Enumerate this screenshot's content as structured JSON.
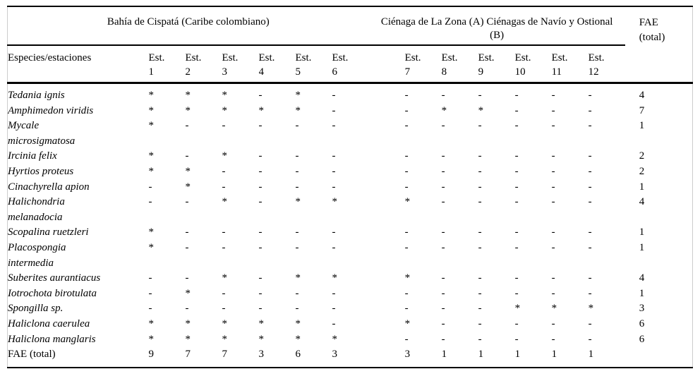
{
  "table": {
    "group_headers": {
      "left": "Bahía de Cispatá (Caribe colombiano)",
      "right": "Ciénaga de La Zona (A) Ciénagas de Navío y Ostional\n(B)"
    },
    "fae_header": "FAE\n(total)",
    "species_header": "Especies/estaciones",
    "station_prefix": "Est.",
    "station_numbers": [
      "1",
      "2",
      "3",
      "4",
      "5",
      "6",
      "7",
      "8",
      "9",
      "10",
      "11",
      "12"
    ],
    "rows": [
      {
        "species": "Tedania ignis",
        "italic": true,
        "values": [
          "*",
          "*",
          "*",
          "-",
          "*",
          "-",
          "-",
          "-",
          "-",
          "-",
          "-",
          "-"
        ],
        "fae": "4"
      },
      {
        "species": "Amphimedon viridis",
        "italic": true,
        "values": [
          "*",
          "*",
          "*",
          "*",
          "*",
          "-",
          "-",
          "*",
          "*",
          "-",
          "-",
          "-"
        ],
        "fae": "7"
      },
      {
        "species": "Mycale\nmicrosigmatosa",
        "italic": true,
        "values": [
          "*",
          "-",
          "-",
          "-",
          "-",
          "-",
          "-",
          "-",
          "-",
          "-",
          "-",
          "-"
        ],
        "fae": "1"
      },
      {
        "species": "Ircinia felix",
        "italic": true,
        "values": [
          "*",
          "-",
          "*",
          "-",
          "-",
          "-",
          "-",
          "-",
          "-",
          "-",
          "-",
          "-"
        ],
        "fae": "2"
      },
      {
        "species": "Hyrtios proteus",
        "italic": true,
        "values": [
          "*",
          "*",
          "-",
          "-",
          "-",
          "-",
          "-",
          "-",
          "-",
          "-",
          "-",
          "-"
        ],
        "fae": "2"
      },
      {
        "species": "Cinachyrella apion",
        "italic": true,
        "values": [
          "-",
          "*",
          "-",
          "-",
          "-",
          "-",
          "-",
          "-",
          "-",
          "-",
          "-",
          "-"
        ],
        "fae": "1"
      },
      {
        "species": "Halichondria\nmelanadocia",
        "italic": true,
        "values": [
          "-",
          "-",
          "*",
          "-",
          "*",
          "*",
          "*",
          "-",
          "-",
          "-",
          "-",
          "-"
        ],
        "fae": "4"
      },
      {
        "species": "Scopalina ruetzleri",
        "italic": true,
        "values": [
          "*",
          "-",
          "-",
          "-",
          "-",
          "-",
          "-",
          "-",
          "-",
          "-",
          "-",
          "-"
        ],
        "fae": "1"
      },
      {
        "species": "Placospongia\nintermedia",
        "italic": true,
        "values": [
          "*",
          "-",
          "-",
          "-",
          "-",
          "-",
          "-",
          "-",
          "-",
          "-",
          "-",
          "-"
        ],
        "fae": "1"
      },
      {
        "species": "Suberites aurantiacus",
        "italic": true,
        "values": [
          "-",
          "-",
          "*",
          "-",
          "*",
          "*",
          "*",
          "-",
          "-",
          "-",
          "-",
          "-"
        ],
        "fae": "4"
      },
      {
        "species": "Iotrochota birotulata",
        "italic": true,
        "values": [
          "-",
          "*",
          "-",
          "-",
          "-",
          "-",
          "-",
          "-",
          "-",
          "-",
          "-",
          "-"
        ],
        "fae": "1"
      },
      {
        "species": "Spongilla sp.",
        "italic": true,
        "values": [
          "-",
          "-",
          "-",
          "-",
          "-",
          "-",
          "-",
          "-",
          "-",
          "*",
          "*",
          "*"
        ],
        "fae": "3"
      },
      {
        "species": "Haliclona caerulea",
        "italic": true,
        "values": [
          "*",
          "*",
          "*",
          "*",
          "*",
          "-",
          "*",
          "-",
          "-",
          "-",
          "-",
          "-"
        ],
        "fae": "6"
      },
      {
        "species": "Haliclona manglaris",
        "italic": true,
        "values": [
          "*",
          "*",
          "*",
          "*",
          "*",
          "*",
          "-",
          "-",
          "-",
          "-",
          "-",
          "-"
        ],
        "fae": "6"
      },
      {
        "species": "FAE (total)",
        "italic": false,
        "values": [
          "9",
          "7",
          "7",
          "3",
          "6",
          "3",
          "3",
          "1",
          "1",
          "1",
          "1",
          "1"
        ],
        "fae": ""
      }
    ]
  },
  "colors": {
    "background": "#ffffff",
    "text": "#000000",
    "rule": "#000000",
    "side_border": "#cccccc"
  }
}
